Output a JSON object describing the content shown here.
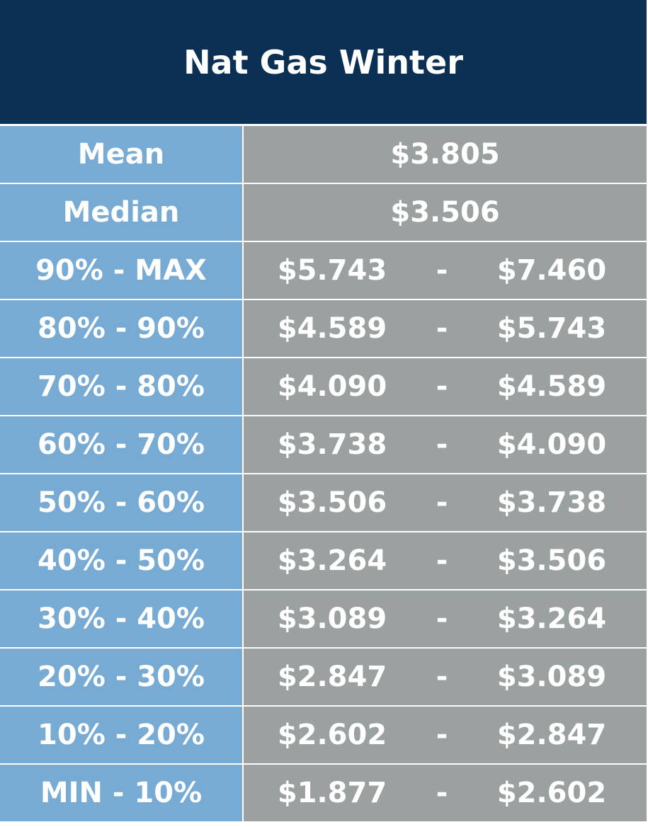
{
  "header": {
    "title": "Nat Gas Winter"
  },
  "table": {
    "rows": [
      [
        "Mean",
        "$3.805"
      ],
      [
        "Median",
        "$3.506"
      ],
      [
        "90% - MAX",
        "$5.743",
        "-",
        "$7.460"
      ],
      [
        "80% - 90%",
        "$4.589",
        "-",
        "$5.743"
      ],
      [
        "70% - 80%",
        "$4.090",
        "-",
        "$4.589"
      ],
      [
        "60% - 70%",
        "$3.738",
        "-",
        "$4.090"
      ],
      [
        "50% - 60%",
        "$3.506",
        "-",
        "$3.738"
      ],
      [
        "40% - 50%",
        "$3.264",
        "-",
        "$3.506"
      ],
      [
        "30% - 40%",
        "$3.089",
        "-",
        "$3.264"
      ],
      [
        "20% - 30%",
        "$2.847",
        "-",
        "$3.089"
      ],
      [
        "10% - 20%",
        "$2.602",
        "-",
        "$2.847"
      ],
      [
        "MIN - 10%",
        "$1.877",
        "-",
        "$2.602"
      ]
    ]
  }
}
